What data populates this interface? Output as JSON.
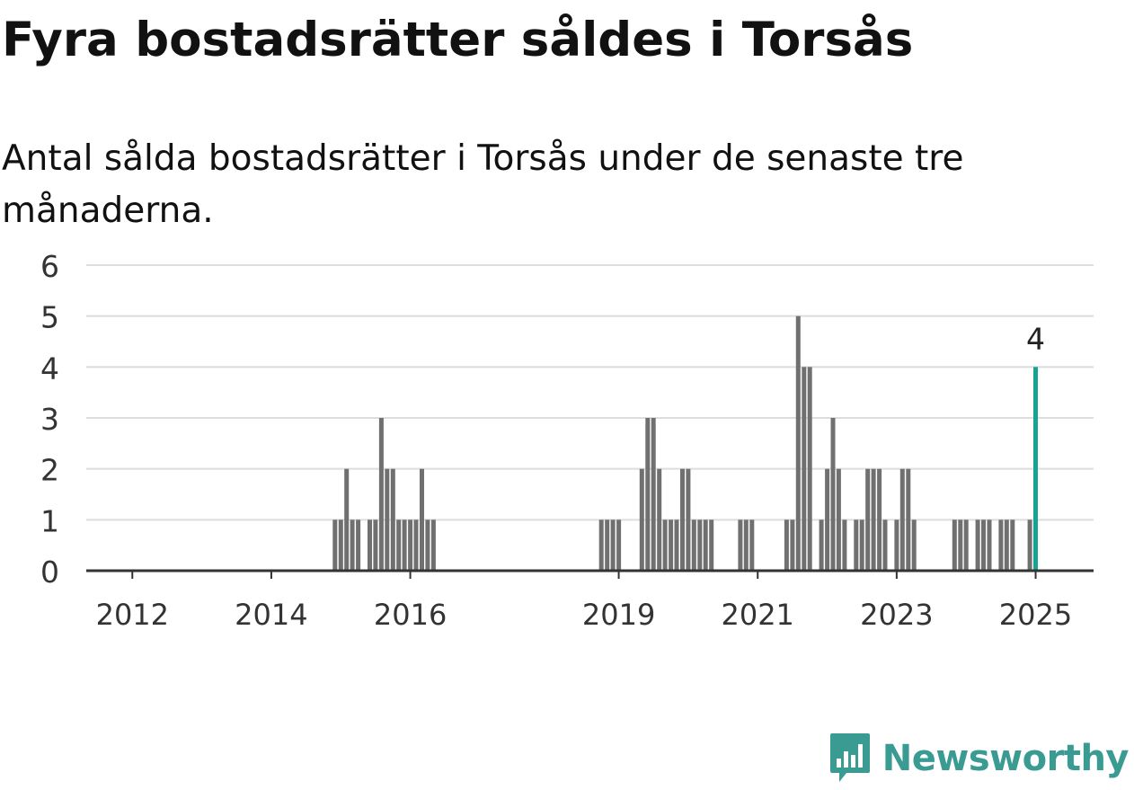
{
  "title": "Fyra bostadsrätter såldes i Torsås",
  "subtitle": "Antal sålda bostadsrätter i Torsås under de senaste tre månaderna.",
  "brand": {
    "name": "Newsworthy",
    "color": "#3a9b93",
    "icon": "newsworthy-chart-icon"
  },
  "colors": {
    "bar": "#707070",
    "highlight": "#17a394",
    "grid": "#dddddd",
    "axis": "#333333"
  },
  "chart_data": {
    "type": "bar",
    "title": "Fyra bostadsrätter såldes i Torsås",
    "subtitle": "Antal sålda bostadsrätter i Torsås under de senaste tre månaderna.",
    "xlabel": "",
    "ylabel": "",
    "ylim": [
      0,
      6
    ],
    "yticks": [
      "0",
      "1",
      "2",
      "3",
      "4",
      "5",
      "6"
    ],
    "xticks": [
      "2012",
      "2014",
      "2016",
      "2019",
      "2021",
      "2023",
      "2025"
    ],
    "grid": true,
    "highlight_label": "4",
    "series": [
      {
        "values": [
          {
            "x": "2014-12",
            "y": 1
          },
          {
            "x": "2015-01",
            "y": 1
          },
          {
            "x": "2015-02",
            "y": 2
          },
          {
            "x": "2015-03",
            "y": 1
          },
          {
            "x": "2015-04",
            "y": 1
          },
          {
            "x": "2015-06",
            "y": 1
          },
          {
            "x": "2015-07",
            "y": 1
          },
          {
            "x": "2015-08",
            "y": 3
          },
          {
            "x": "2015-09",
            "y": 2
          },
          {
            "x": "2015-10",
            "y": 2
          },
          {
            "x": "2015-11",
            "y": 1
          },
          {
            "x": "2015-12",
            "y": 1
          },
          {
            "x": "2016-01",
            "y": 1
          },
          {
            "x": "2016-02",
            "y": 1
          },
          {
            "x": "2016-03",
            "y": 2
          },
          {
            "x": "2016-04",
            "y": 1
          },
          {
            "x": "2016-05",
            "y": 1
          },
          {
            "x": "2018-10",
            "y": 1
          },
          {
            "x": "2018-11",
            "y": 1
          },
          {
            "x": "2018-12",
            "y": 1
          },
          {
            "x": "2019-01",
            "y": 1
          },
          {
            "x": "2019-05",
            "y": 2
          },
          {
            "x": "2019-06",
            "y": 3
          },
          {
            "x": "2019-07",
            "y": 3
          },
          {
            "x": "2019-08",
            "y": 2
          },
          {
            "x": "2019-09",
            "y": 1
          },
          {
            "x": "2019-10",
            "y": 1
          },
          {
            "x": "2019-11",
            "y": 1
          },
          {
            "x": "2019-12",
            "y": 2
          },
          {
            "x": "2020-01",
            "y": 2
          },
          {
            "x": "2020-02",
            "y": 1
          },
          {
            "x": "2020-03",
            "y": 1
          },
          {
            "x": "2020-04",
            "y": 1
          },
          {
            "x": "2020-05",
            "y": 1
          },
          {
            "x": "2020-10",
            "y": 1
          },
          {
            "x": "2020-11",
            "y": 1
          },
          {
            "x": "2020-12",
            "y": 1
          },
          {
            "x": "2021-06",
            "y": 1
          },
          {
            "x": "2021-07",
            "y": 1
          },
          {
            "x": "2021-08",
            "y": 5
          },
          {
            "x": "2021-09",
            "y": 4
          },
          {
            "x": "2021-10",
            "y": 4
          },
          {
            "x": "2021-12",
            "y": 1
          },
          {
            "x": "2022-01",
            "y": 2
          },
          {
            "x": "2022-02",
            "y": 3
          },
          {
            "x": "2022-03",
            "y": 2
          },
          {
            "x": "2022-04",
            "y": 1
          },
          {
            "x": "2022-06",
            "y": 1
          },
          {
            "x": "2022-07",
            "y": 1
          },
          {
            "x": "2022-08",
            "y": 2
          },
          {
            "x": "2022-09",
            "y": 2
          },
          {
            "x": "2022-10",
            "y": 2
          },
          {
            "x": "2022-11",
            "y": 1
          },
          {
            "x": "2023-01",
            "y": 1
          },
          {
            "x": "2023-02",
            "y": 2
          },
          {
            "x": "2023-03",
            "y": 2
          },
          {
            "x": "2023-04",
            "y": 1
          },
          {
            "x": "2023-11",
            "y": 1
          },
          {
            "x": "2023-12",
            "y": 1
          },
          {
            "x": "2024-01",
            "y": 1
          },
          {
            "x": "2024-03",
            "y": 1
          },
          {
            "x": "2024-04",
            "y": 1
          },
          {
            "x": "2024-05",
            "y": 1
          },
          {
            "x": "2024-07",
            "y": 1
          },
          {
            "x": "2024-08",
            "y": 1
          },
          {
            "x": "2024-09",
            "y": 1
          },
          {
            "x": "2024-12",
            "y": 1
          },
          {
            "x": "2025-01",
            "y": 4,
            "highlight": true
          }
        ]
      }
    ]
  }
}
